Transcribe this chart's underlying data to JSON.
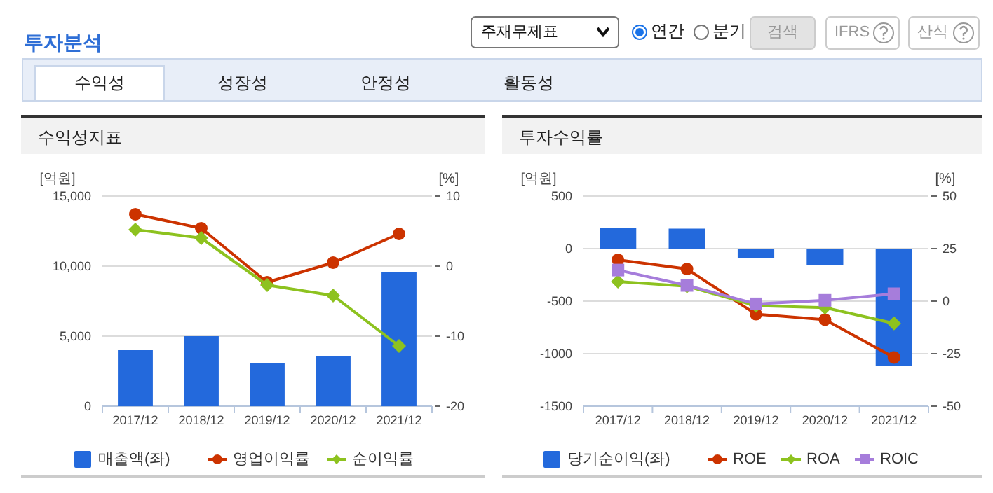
{
  "chart_data": [
    {
      "type": "other",
      "title": "투자분석",
      "annotations": [
        "주재무제표",
        "연간",
        "분기",
        "검색",
        "IFRS",
        "산식",
        "수익성",
        "성장성",
        "안정성",
        "활동성"
      ]
    },
    {
      "type": "bar",
      "title": "수익성지표",
      "ylabel": "[억원]",
      "y2label": "[%]",
      "categories": [
        "2017/12",
        "2018/12",
        "2019/12",
        "2020/12",
        "2021/12"
      ],
      "ylim": [
        0,
        15000
      ],
      "yticks": [
        0,
        {
          "value": 5000,
          "label": "5,000"
        },
        {
          "value": 10000,
          "label": "10,000"
        },
        {
          "value": 15000,
          "label": "15,000"
        }
      ],
      "y2lim": [
        -20,
        10
      ],
      "y2ticks": [
        -20,
        -10,
        0,
        10
      ],
      "grid": "y",
      "legend": "bottom",
      "series": [
        {
          "name": "매출액(좌)",
          "type": "bar",
          "color": "#2369dc",
          "values": [
            4000,
            5000,
            3100,
            3600,
            9600
          ]
        },
        {
          "name": "영업이익률",
          "type": "line",
          "axis": "y2",
          "marker": "circle",
          "color": "#cc3300",
          "values": [
            7.4,
            5.4,
            -2.3,
            0.5,
            4.6
          ]
        },
        {
          "name": "순이익률",
          "type": "line",
          "axis": "y2",
          "marker": "diamond",
          "color": "#8dc21f",
          "values": [
            5.2,
            4.0,
            -2.7,
            -4.2,
            -11.4
          ]
        }
      ]
    },
    {
      "type": "bar",
      "title": "투자수익률",
      "ylabel": "[억원]",
      "y2label": "[%]",
      "categories": [
        "2017/12",
        "2018/12",
        "2019/12",
        "2020/12",
        "2021/12"
      ],
      "ylim": [
        -1500,
        500
      ],
      "yticks": [
        -1500,
        -1000,
        -500,
        0,
        500
      ],
      "y2lim": [
        -50,
        50
      ],
      "y2ticks": [
        -50,
        -25,
        0,
        25,
        50
      ],
      "grid": "y",
      "legend": "bottom",
      "series": [
        {
          "name": "당기순이익(좌)",
          "type": "bar",
          "color": "#2369dc",
          "values": [
            200,
            190,
            -90,
            -160,
            -1120
          ]
        },
        {
          "name": "ROE",
          "type": "line",
          "axis": "y2",
          "marker": "circle",
          "color": "#cc3300",
          "values": [
            19.7,
            15.3,
            -6.2,
            -8.8,
            -26.8
          ]
        },
        {
          "name": "ROA",
          "type": "line",
          "axis": "y2",
          "marker": "diamond",
          "color": "#8dc21f",
          "values": [
            9.3,
            7.1,
            -2.2,
            -3.1,
            -10.6
          ]
        },
        {
          "name": "ROIC",
          "type": "line",
          "axis": "y2",
          "marker": "square",
          "color": "#a67ddb",
          "values": [
            14.8,
            7.5,
            -1.3,
            0.4,
            3.5
          ]
        }
      ]
    }
  ]
}
